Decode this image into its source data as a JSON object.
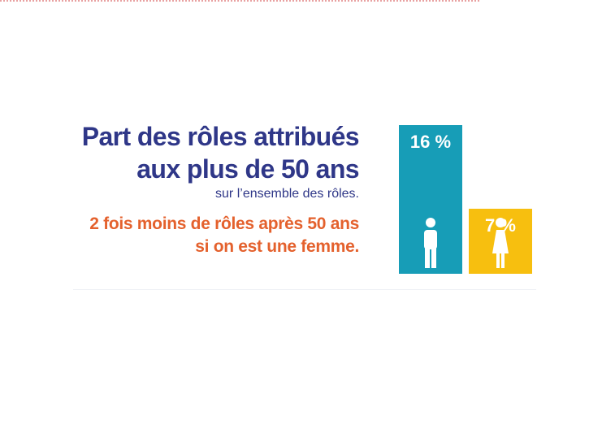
{
  "header": {
    "title_line1": "Part des rôles attribués",
    "title_line2": "aux plus de 50 ans",
    "subtitle": "sur l’ensemble des rôles.",
    "note_line1": "2 fois moins de rôles après 50 ans",
    "note_line2": "si on est une femme."
  },
  "chart_data": {
    "type": "bar",
    "categories": [
      "homme",
      "femme"
    ],
    "values": [
      16,
      7
    ],
    "value_labels": [
      "16 %",
      "7 %"
    ],
    "colors": [
      "#179db7",
      "#f7bf0f"
    ],
    "icon_names": [
      "man-icon",
      "woman-icon"
    ],
    "ylim": [
      0,
      16
    ],
    "title": "Part des rôles attribués aux plus de 50 ans",
    "xlabel": "",
    "ylabel": ""
  },
  "colors": {
    "title": "#2f3788",
    "note": "#e4612d",
    "icon": "#ffffff"
  }
}
